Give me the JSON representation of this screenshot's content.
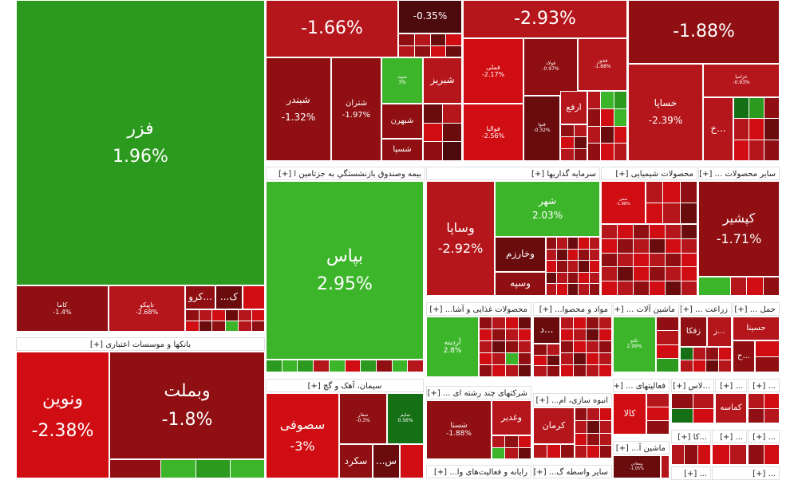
{
  "colors": {
    "gain_strong": "#2c9a1e",
    "gain_light": "#3db52b",
    "gain_dark": "#157015",
    "loss_1": "#d00d12",
    "loss_2": "#b5161b",
    "loss_3": "#8f0f12",
    "loss_4": "#6a0b0e",
    "loss_5": "#4d0a0c"
  },
  "tiles": {
    "fazr": {
      "name": "فزر",
      "pct": "1.96%"
    },
    "tile_a": {
      "pct": "-1.66%"
    },
    "tile_b": {
      "pct": "-0.35%"
    },
    "tile_c": {
      "pct": "-2.93%"
    },
    "tile_d": {
      "pct": "-1.88%"
    },
    "shabandar": {
      "name": "شبندر",
      "pct": "-1.32%"
    },
    "shetran": {
      "name": "شتران",
      "pct": "-1.97%"
    },
    "shetran_small": {
      "name": "سپید",
      "pct": "3%"
    },
    "shabriz": {
      "name": "شبریز"
    },
    "shebahran": {
      "name": "شبهرن"
    },
    "shesapa": {
      "name": "شسپا"
    },
    "fameli": {
      "name": "فملی",
      "pct": "-2.17%"
    },
    "foolad": {
      "name": "فولاد",
      "pct": "-0.97%"
    },
    "fakhoz": {
      "name": "فخوز",
      "pct": "-1.88%"
    },
    "fameli_b": {
      "name": "فوالیا",
      "pct": "-2.56%"
    },
    "arfa": {
      "name": "ارفع"
    },
    "small_neg": {
      "name": "فنوا",
      "pct": "-0.32%"
    },
    "khesapa": {
      "name": "خساپا",
      "pct": "-2.39%"
    },
    "kh": {
      "name": "خ..."
    },
    "khzamia": {
      "name": "خزامیا",
      "pct": "-0.93%"
    },
    "kama": {
      "name": "کاما",
      "pct": "-1.4%"
    },
    "tapiko": {
      "name": "تاپیکو",
      "pct": "-2.68%"
    },
    "kro": {
      "name": "کرو..."
    },
    "k": {
      "name": "...ک"
    },
    "bepas": {
      "name": "بپاس",
      "pct": "2.95%"
    },
    "vesapa": {
      "name": "وساپا",
      "pct": "-2.92%"
    },
    "shahr": {
      "name": "شهر",
      "pct": "2.03%"
    },
    "vkharzam": {
      "name": "وخارزم"
    },
    "vsepah": {
      "name": "وسپه"
    },
    "kashir": {
      "name": "کپشیر",
      "pct": "-1.71%"
    },
    "shimi_small": {
      "name": "شفن",
      "pct": "-1.98%"
    },
    "ardineh": {
      "name": "آردینه",
      "pct": "2.8%"
    },
    "dd": {
      "name": "د..."
    },
    "takno": {
      "name": "تکنو",
      "pct": "2.99%"
    },
    "zafka": {
      "name": "زفکا"
    },
    "z": {
      "name": "ز..."
    },
    "hesina": {
      "name": "حسینا"
    },
    "h": {
      "name": "ح..."
    },
    "vebmelat": {
      "name": "وبملت",
      "pct": "-1.8%"
    },
    "vnovin": {
      "name": "ونوین",
      "pct": "-2.38%"
    },
    "sofi": {
      "name": "سصوفی",
      "pct": "-3%"
    },
    "seman_1": {
      "name": "سفار",
      "pct": "-0.3%"
    },
    "seman_2": {
      "name": "سایم",
      "pct": "0.56%"
    },
    "sekord": {
      "name": "سکرد"
    },
    "sx": {
      "name": "...س"
    },
    "shesta": {
      "name": "شستا",
      "pct": "-1.88%"
    },
    "vghadir": {
      "name": "وغدیر"
    },
    "kerman": {
      "name": "کرمان"
    },
    "kala": {
      "name": "کالا"
    },
    "kamase": {
      "name": "کماسه"
    },
    "machin_small": {
      "name": "ومعادن",
      "pct": "-1.05%"
    }
  },
  "sectors": {
    "bimeh": "بیمه وصندوق بازنشستگي به جزتامین ا [+]",
    "sarmayeh": "سرمایه گذاریها [+]",
    "shimiai": "محصولات شیمیایی [+]",
    "sayer": "سایر محصولات ... [+]",
    "banks": "بانکها و موسسات اعتباری [+]",
    "ghaza": "محصولات غذایی و آشا... [+]",
    "mavad": "مواد و محصوا... [+]",
    "machinalat": "ماشین آلات ... [+]",
    "zeraat": "زراعت ... [+]",
    "haml": "حمل ... [+]",
    "siman": "سیمان، آهک و گچ [+]",
    "chand_reshte": "شرکتهای چند رشته ای ... [+]",
    "anbuh": "انبوه سازی، ام... [+]",
    "faaliat": "فعالیتهای ... [+]",
    "las": "...لاس [+]",
    "small_1": "... [+]",
    "small_2": "... [+]",
    "rayaneh": "رایانه و فعالیت‌های وا... [+]",
    "vasete": "سایر واسطه گ... [+]",
    "machin_a": "ماشین آ... [+]",
    "ka": "...کا [+]",
    "small_3": "... [+]",
    "small_4": "... [+]",
    "small_5": "... [+]",
    "small_6": "... [+]"
  }
}
